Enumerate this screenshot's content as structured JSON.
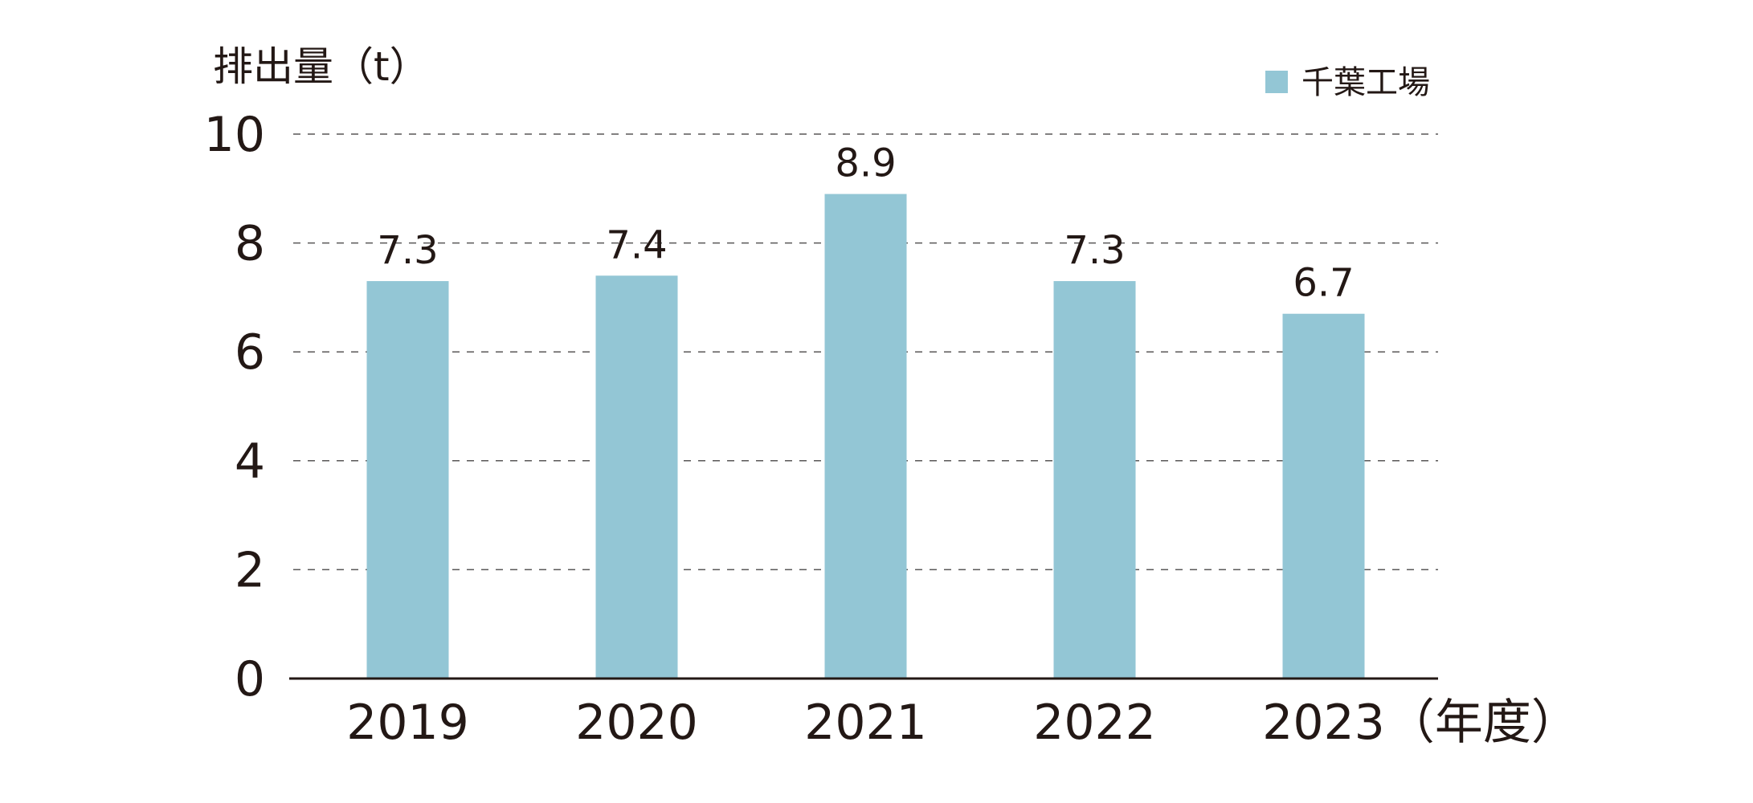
{
  "chart_data": {
    "type": "bar",
    "ylabel": "排出量（t）",
    "xlabel": "（年度）",
    "categories": [
      "2019",
      "2020",
      "2021",
      "2022",
      "2023"
    ],
    "series": [
      {
        "name": "千葉工場",
        "values": [
          7.3,
          7.4,
          8.9,
          7.3,
          6.7
        ],
        "color": "#93c6d5"
      }
    ],
    "value_labels": [
      "7.3",
      "7.4",
      "8.9",
      "7.3",
      "6.7"
    ],
    "ylim": [
      0,
      10
    ],
    "yticks": [
      0,
      2,
      4,
      6,
      8,
      10
    ],
    "grid": true,
    "grid_style": "dashed",
    "legend_position": "top-right"
  },
  "colors": {
    "text": "#231815",
    "grid": "#595757",
    "axis": "#231815",
    "bar": "#93c6d5"
  }
}
